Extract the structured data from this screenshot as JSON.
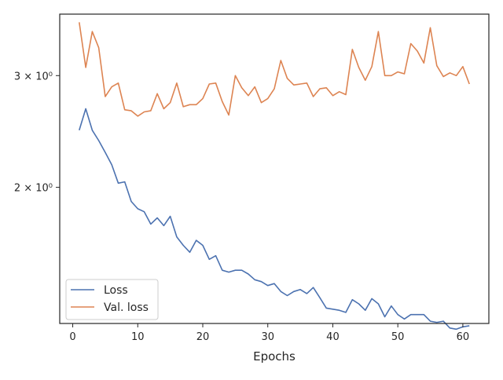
{
  "chart_data": {
    "type": "line",
    "title": "",
    "xlabel": "Epochs",
    "ylabel": "",
    "y_scale": "log",
    "xlim": [
      -2,
      64
    ],
    "ylim": [
      1.22,
      3.75
    ],
    "grid": false,
    "legend_position": "lower-left",
    "x_ticks": [
      0,
      10,
      20,
      30,
      40,
      50,
      60
    ],
    "x_tick_labels": [
      "0",
      "10",
      "20",
      "30",
      "40",
      "50",
      "60"
    ],
    "y_ticks": [
      2,
      3
    ],
    "y_tick_labels": [
      "2 × 10⁰",
      "3 × 10⁰"
    ],
    "x": [
      1,
      2,
      3,
      4,
      5,
      6,
      7,
      8,
      9,
      10,
      11,
      12,
      13,
      14,
      15,
      16,
      17,
      18,
      19,
      20,
      21,
      22,
      23,
      24,
      25,
      26,
      27,
      28,
      29,
      30,
      31,
      32,
      33,
      34,
      35,
      36,
      37,
      38,
      39,
      40,
      41,
      42,
      43,
      44,
      45,
      46,
      47,
      48,
      49,
      50,
      51,
      52,
      53,
      54,
      55,
      56,
      57,
      58,
      59,
      60,
      61
    ],
    "series": [
      {
        "name": "Loss",
        "color": "#4c72b0",
        "values": [
          2.46,
          2.66,
          2.46,
          2.37,
          2.27,
          2.17,
          2.03,
          2.04,
          1.9,
          1.85,
          1.83,
          1.75,
          1.79,
          1.74,
          1.8,
          1.67,
          1.62,
          1.58,
          1.65,
          1.62,
          1.54,
          1.56,
          1.48,
          1.47,
          1.48,
          1.48,
          1.46,
          1.43,
          1.42,
          1.4,
          1.41,
          1.37,
          1.35,
          1.37,
          1.38,
          1.36,
          1.39,
          1.34,
          1.29,
          1.285,
          1.28,
          1.27,
          1.33,
          1.31,
          1.28,
          1.335,
          1.31,
          1.25,
          1.3,
          1.26,
          1.24,
          1.26,
          1.26,
          1.26,
          1.23,
          1.225,
          1.23,
          1.2,
          1.195,
          1.205,
          1.21
        ]
      },
      {
        "name": "Val. loss",
        "color": "#dd8452",
        "values": [
          3.64,
          3.09,
          3.52,
          3.32,
          2.78,
          2.88,
          2.92,
          2.65,
          2.64,
          2.59,
          2.63,
          2.64,
          2.81,
          2.66,
          2.72,
          2.92,
          2.68,
          2.7,
          2.7,
          2.76,
          2.91,
          2.92,
          2.73,
          2.6,
          3.0,
          2.87,
          2.79,
          2.88,
          2.72,
          2.76,
          2.86,
          3.17,
          2.97,
          2.9,
          2.91,
          2.92,
          2.78,
          2.86,
          2.87,
          2.79,
          2.83,
          2.8,
          3.3,
          3.09,
          2.95,
          3.1,
          3.52,
          3.0,
          3.0,
          3.04,
          3.02,
          3.37,
          3.28,
          3.14,
          3.57,
          3.11,
          2.99,
          3.03,
          3.0,
          3.1,
          2.91
        ]
      }
    ]
  }
}
